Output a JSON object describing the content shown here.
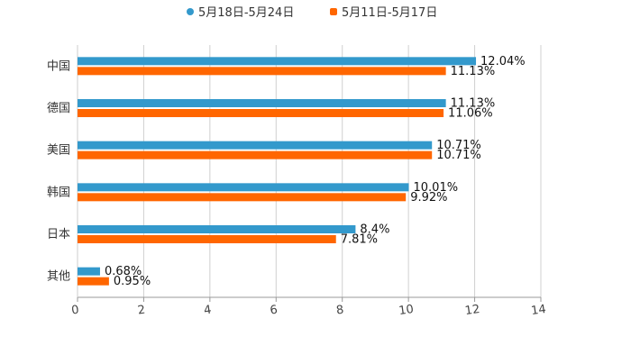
{
  "chart_data": {
    "type": "bar",
    "orientation": "horizontal",
    "categories": [
      "中国",
      "德国",
      "美国",
      "韩国",
      "日本",
      "其他"
    ],
    "series": [
      {
        "name": "5月18日-5月24日",
        "color": "#3399cc",
        "values": [
          12.04,
          11.13,
          10.71,
          10.01,
          8.4,
          0.68
        ],
        "labels": [
          "12.04%",
          "11.13%",
          "10.71%",
          "10.01%",
          "8.4%",
          "0.68%"
        ]
      },
      {
        "name": "5月11日-5月17日",
        "color": "#ff6600",
        "values": [
          11.13,
          11.06,
          10.71,
          9.92,
          7.81,
          0.95
        ],
        "labels": [
          "11.13%",
          "11.06%",
          "10.71%",
          "9.92%",
          "7.81%",
          "0.95%"
        ]
      }
    ],
    "xlim": [
      0,
      14
    ],
    "xticks": [
      0,
      2,
      4,
      6,
      8,
      10,
      12,
      14
    ],
    "xtick_labels": [
      "0",
      "2",
      "4",
      "6",
      "8",
      "10",
      "12",
      "14"
    ],
    "grid": true,
    "legend_position": "top-center",
    "title": "",
    "xlabel": "",
    "ylabel": ""
  }
}
